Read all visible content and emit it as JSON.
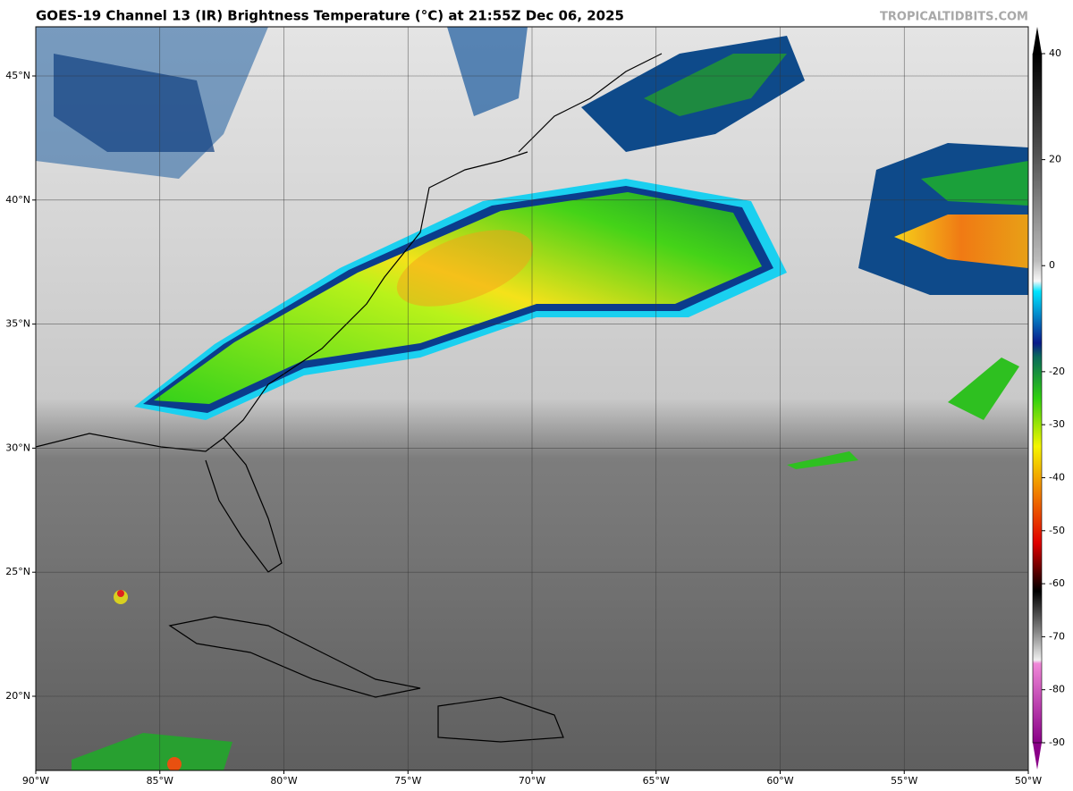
{
  "map": {
    "title": "GOES-19 Channel 13 (IR) Brightness Temperature (°C) at 21:55Z Dec 06, 2025",
    "credit": "TROPICALTIDBITS.COM",
    "lon_ticks": [
      {
        "value": -90,
        "label": "90°W"
      },
      {
        "value": -85,
        "label": "85°W"
      },
      {
        "value": -80,
        "label": "80°W"
      },
      {
        "value": -75,
        "label": "75°W"
      },
      {
        "value": -70,
        "label": "70°W"
      },
      {
        "value": -65,
        "label": "65°W"
      },
      {
        "value": -60,
        "label": "60°W"
      },
      {
        "value": -55,
        "label": "55°W"
      },
      {
        "value": -50,
        "label": "50°W"
      }
    ],
    "lat_ticks": [
      {
        "value": 45,
        "label": "45°N"
      },
      {
        "value": 40,
        "label": "40°N"
      },
      {
        "value": 35,
        "label": "35°N"
      },
      {
        "value": 30,
        "label": "30°N"
      },
      {
        "value": 25,
        "label": "25°N"
      },
      {
        "value": 20,
        "label": "20°N"
      }
    ],
    "colorbar_ticks": [
      40,
      20,
      0,
      -20,
      -30,
      -40,
      -50,
      -60,
      -70,
      -80,
      -90
    ]
  }
}
